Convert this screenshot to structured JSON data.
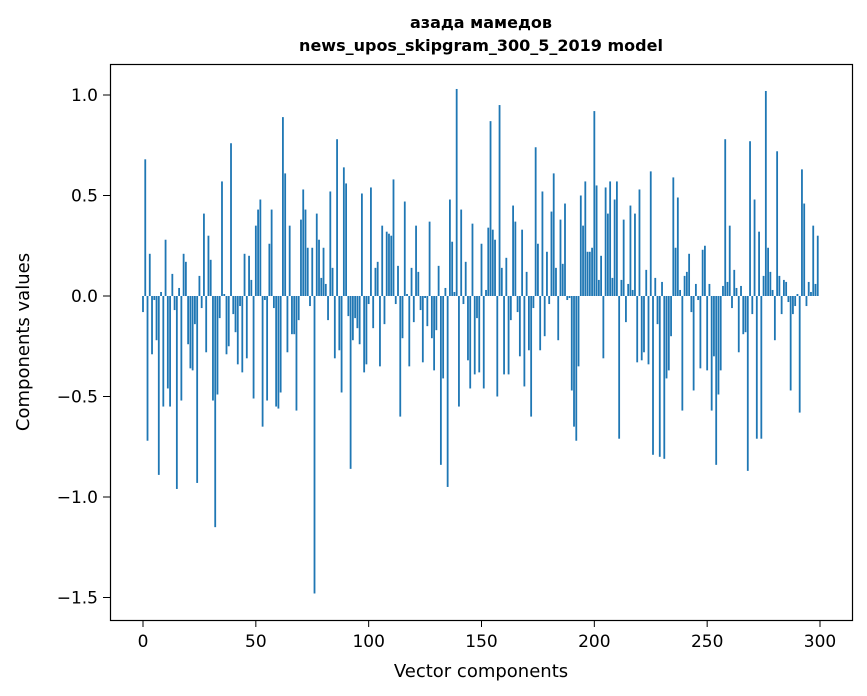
{
  "chart_data": {
    "type": "bar",
    "title": [
      "азада мамедов",
      "news_upos_skipgram_300_5_2019 model"
    ],
    "xlabel": "Vector components",
    "ylabel": "Components values",
    "xlim": [
      -15,
      315
    ],
    "ylim": [
      -1.6,
      1.15
    ],
    "xticks": [
      0,
      50,
      100,
      150,
      200,
      250,
      300
    ],
    "xtick_labels": [
      "0",
      "50",
      "100",
      "150",
      "200",
      "250",
      "300"
    ],
    "yticks": [
      -1.5,
      -1.0,
      -0.5,
      0.0,
      0.5,
      1.0
    ],
    "ytick_labels": [
      "−1.5",
      "−1.0",
      "−0.5",
      "0.0",
      "0.5",
      "1.0"
    ],
    "grid": false,
    "bar_color": "#1f77b4",
    "values": [
      -0.08,
      0.68,
      -0.72,
      0.21,
      -0.29,
      -0.02,
      -0.22,
      -0.89,
      0.02,
      -0.55,
      0.28,
      -0.46,
      -0.55,
      0.11,
      -0.07,
      -0.96,
      0.04,
      -0.52,
      0.21,
      0.17,
      -0.24,
      -0.36,
      -0.37,
      -0.14,
      -0.93,
      0.1,
      -0.06,
      0.41,
      -0.28,
      0.3,
      0.18,
      -0.52,
      -1.15,
      -0.49,
      -0.11,
      0.57,
      0.01,
      -0.29,
      -0.25,
      0.76,
      -0.09,
      -0.18,
      -0.34,
      -0.05,
      -0.38,
      0.21,
      -0.31,
      0.2,
      0.08,
      -0.51,
      0.35,
      0.43,
      0.48,
      -0.65,
      -0.02,
      -0.52,
      0.26,
      0.43,
      -0.06,
      -0.55,
      -0.56,
      -0.48,
      0.89,
      0.61,
      -0.28,
      0.35,
      -0.19,
      -0.19,
      -0.57,
      -0.12,
      0.38,
      0.53,
      0.43,
      0.24,
      -0.05,
      0.24,
      -1.48,
      0.41,
      0.28,
      0.09,
      0.24,
      0.06,
      -0.12,
      0.52,
      0.14,
      -0.31,
      0.78,
      -0.27,
      -0.48,
      0.64,
      0.56,
      -0.1,
      -0.86,
      -0.22,
      -0.11,
      -0.16,
      -0.24,
      0.51,
      -0.38,
      -0.34,
      -0.04,
      0.54,
      -0.16,
      0.14,
      0.17,
      -0.35,
      0.35,
      -0.14,
      0.32,
      0.31,
      0.3,
      0.58,
      -0.04,
      0.15,
      -0.6,
      -0.21,
      0.47,
      0.01,
      -0.35,
      0.14,
      -0.13,
      0.35,
      0.12,
      -0.07,
      -0.33,
      -0.01,
      -0.15,
      0.37,
      -0.21,
      -0.37,
      -0.17,
      0.15,
      -0.84,
      -0.41,
      0.04,
      -0.95,
      0.48,
      0.27,
      0.02,
      1.03,
      -0.55,
      0.43,
      -0.04,
      0.17,
      -0.32,
      -0.46,
      0.36,
      -0.39,
      -0.11,
      -0.38,
      0.26,
      -0.46,
      0.03,
      0.34,
      0.87,
      0.33,
      0.28,
      -0.5,
      0.95,
      0.14,
      -0.39,
      0.19,
      -0.39,
      -0.12,
      0.45,
      0.37,
      -0.08,
      -0.3,
      0.33,
      -0.45,
      0.12,
      -0.27,
      -0.6,
      -0.06,
      0.74,
      0.26,
      -0.27,
      0.52,
      -0.2,
      0.22,
      -0.04,
      0.42,
      0.61,
      0.14,
      -0.22,
      0.38,
      0.16,
      0.46,
      -0.02,
      -0.01,
      -0.47,
      -0.65,
      -0.72,
      -0.35,
      0.5,
      0.35,
      0.57,
      0.22,
      0.22,
      0.24,
      0.92,
      0.55,
      0.08,
      0.2,
      -0.31,
      0.54,
      0.41,
      0.57,
      0.09,
      0.48,
      0.57,
      -0.71,
      0.08,
      0.38,
      -0.13,
      0.06,
      0.45,
      0.03,
      0.41,
      -0.33,
      0.53,
      -0.32,
      -0.28,
      0.13,
      -0.34,
      0.62,
      -0.79,
      0.09,
      -0.14,
      -0.8,
      0.07,
      -0.81,
      -0.41,
      -0.37,
      -0.2,
      0.59,
      0.24,
      0.49,
      0.03,
      -0.57,
      0.1,
      0.12,
      0.21,
      -0.08,
      -0.47,
      0.06,
      -0.02,
      -0.36,
      0.23,
      0.25,
      -0.37,
      0.06,
      -0.57,
      -0.3,
      -0.84,
      -0.49,
      -0.37,
      0.05,
      0.78,
      0.07,
      0.35,
      -0.06,
      0.13,
      0.04,
      -0.28,
      0.05,
      -0.19,
      -0.18,
      -0.87,
      0.77,
      -0.09,
      0.48,
      -0.71,
      0.32,
      -0.71,
      0.1,
      1.02,
      0.24,
      0.12,
      0.03,
      -0.22,
      0.72,
      0.1,
      -0.09,
      0.08,
      0.07,
      -0.03,
      -0.47,
      -0.09,
      -0.05,
      0.01,
      -0.58,
      0.63,
      0.46,
      -0.05,
      0.07,
      0.02,
      0.35,
      0.06,
      0.3
    ]
  }
}
